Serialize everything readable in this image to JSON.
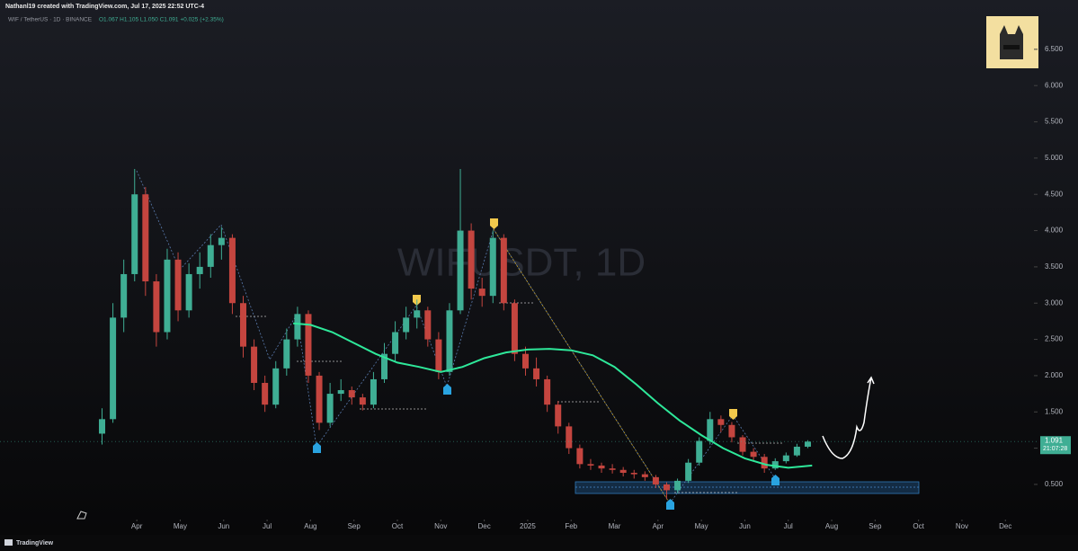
{
  "header": {
    "author_line": "Nathanl19 created with TradingView.com, Jul 17, 2025 22:52 UTC-4",
    "symbol": "WIF / TetherUS · 1D · BINANCE",
    "ohlc": "O1.067 H1.105 L1.050 C1.091 +0.025 (+2.35%)",
    "watermark": "WIFUSDT, 1D",
    "footer": "TradingView"
  },
  "chart_data": {
    "type": "candlestick",
    "xlim": [
      -2.15,
      21.45
    ],
    "ylim": [
      0.09,
      7.18
    ],
    "xticks": [
      {
        "value": 1,
        "label": "Apr"
      },
      {
        "value": 2,
        "label": "May"
      },
      {
        "value": 3,
        "label": "Jun"
      },
      {
        "value": 4,
        "label": "Jul"
      },
      {
        "value": 5,
        "label": "Aug"
      },
      {
        "value": 6,
        "label": "Sep"
      },
      {
        "value": 7,
        "label": "Oct"
      },
      {
        "value": 8,
        "label": "Nov"
      },
      {
        "value": 9,
        "label": "Dec"
      },
      {
        "value": 10,
        "label": "2025"
      },
      {
        "value": 11,
        "label": "Feb"
      },
      {
        "value": 12,
        "label": "Mar"
      },
      {
        "value": 13,
        "label": "Apr"
      },
      {
        "value": 14,
        "label": "May"
      },
      {
        "value": 15,
        "label": "Jun"
      },
      {
        "value": 16,
        "label": "Jul"
      },
      {
        "value": 17,
        "label": "Aug"
      },
      {
        "value": 18,
        "label": "Sep"
      },
      {
        "value": 19,
        "label": "Oct"
      },
      {
        "value": 20,
        "label": "Nov"
      },
      {
        "value": 21,
        "label": "Dec"
      }
    ],
    "yticks": [
      {
        "value": 0.5,
        "label": "0.500"
      },
      {
        "value": 1,
        "label": "1.000"
      },
      {
        "value": 1.5,
        "label": "1.500"
      },
      {
        "value": 2,
        "label": "2.000"
      },
      {
        "value": 2.5,
        "label": "2.500"
      },
      {
        "value": 3,
        "label": "3.000"
      },
      {
        "value": 3.5,
        "label": "3.500"
      },
      {
        "value": 4,
        "label": "4.000"
      },
      {
        "value": 4.5,
        "label": "4.500"
      },
      {
        "value": 5,
        "label": "5.000"
      },
      {
        "value": 5.5,
        "label": "5.500"
      },
      {
        "value": 6,
        "label": "6.000"
      },
      {
        "value": 6.5,
        "label": "6.500"
      }
    ],
    "up_color": "#3fae94",
    "down_color": "#c4453f",
    "x": [
      0.2,
      0.45,
      0.7,
      0.95,
      1.2,
      1.45,
      1.7,
      1.95,
      2.2,
      2.45,
      2.7,
      2.95,
      3.2,
      3.45,
      3.7,
      3.95,
      4.2,
      4.45,
      4.7,
      4.95,
      5.2,
      5.45,
      5.7,
      5.95,
      6.2,
      6.45,
      6.7,
      6.95,
      7.2,
      7.45,
      7.7,
      7.95,
      8.2,
      8.45,
      8.7,
      8.95,
      9.2,
      9.45,
      9.7,
      9.95,
      10.2,
      10.45,
      10.7,
      10.95,
      11.2,
      11.45,
      11.7,
      11.95,
      12.2,
      12.45,
      12.7,
      12.95,
      13.2,
      13.45,
      13.7,
      13.95,
      14.2,
      14.45,
      14.7,
      14.95,
      15.2,
      15.45,
      15.7,
      15.95,
      16.2,
      16.45
    ],
    "open": [
      1.2,
      1.4,
      2.8,
      3.4,
      4.5,
      3.3,
      2.6,
      3.6,
      2.9,
      3.4,
      3.5,
      3.8,
      3.9,
      3.0,
      2.4,
      1.9,
      1.6,
      2.1,
      2.5,
      2.85,
      2.0,
      1.35,
      1.75,
      1.8,
      1.7,
      1.6,
      1.95,
      2.3,
      2.6,
      2.8,
      2.9,
      2.5,
      2.05,
      2.9,
      4.0,
      3.2,
      3.1,
      3.9,
      3.0,
      2.3,
      2.1,
      1.95,
      1.6,
      1.3,
      1.0,
      0.78,
      0.76,
      0.72,
      0.7,
      0.66,
      0.64,
      0.6,
      0.5,
      0.42,
      0.55,
      0.8,
      1.1,
      1.4,
      1.32,
      1.15,
      0.95,
      0.88,
      0.72,
      0.82,
      0.9,
      1.02
    ],
    "high": [
      1.55,
      3.0,
      3.6,
      4.85,
      4.6,
      3.4,
      3.75,
      3.7,
      3.55,
      3.7,
      3.95,
      4.05,
      3.95,
      3.1,
      2.5,
      2.0,
      2.2,
      2.65,
      2.95,
      2.9,
      2.05,
      1.9,
      1.95,
      1.85,
      1.75,
      2.05,
      2.45,
      2.75,
      2.95,
      3.05,
      2.95,
      2.6,
      3.0,
      4.85,
      4.1,
      3.35,
      4.0,
      3.95,
      3.05,
      2.4,
      2.25,
      2.0,
      1.65,
      1.35,
      1.05,
      0.85,
      0.8,
      0.78,
      0.74,
      0.7,
      0.68,
      0.63,
      0.53,
      0.58,
      0.85,
      1.15,
      1.5,
      1.45,
      1.36,
      1.18,
      1.0,
      0.92,
      0.86,
      0.94,
      1.06,
      1.11
    ],
    "low": [
      1.05,
      1.35,
      2.6,
      3.3,
      3.1,
      2.4,
      2.5,
      2.75,
      2.8,
      3.2,
      3.35,
      3.6,
      2.85,
      2.25,
      1.8,
      1.5,
      1.55,
      2.0,
      2.4,
      1.9,
      1.25,
      1.3,
      1.65,
      1.6,
      1.52,
      1.55,
      1.9,
      2.2,
      2.5,
      2.65,
      2.4,
      1.95,
      2.0,
      2.85,
      3.05,
      2.95,
      3.0,
      2.9,
      2.2,
      2.0,
      1.85,
      1.5,
      1.2,
      0.92,
      0.72,
      0.7,
      0.66,
      0.65,
      0.61,
      0.58,
      0.55,
      0.45,
      0.3,
      0.38,
      0.52,
      0.76,
      1.05,
      1.22,
      1.08,
      0.9,
      0.82,
      0.66,
      0.7,
      0.79,
      0.88,
      1.0
    ],
    "close": [
      1.4,
      2.8,
      3.4,
      4.5,
      3.3,
      2.6,
      3.6,
      2.9,
      3.4,
      3.5,
      3.8,
      3.9,
      3.0,
      2.4,
      1.9,
      1.6,
      2.1,
      2.5,
      2.85,
      2.0,
      1.35,
      1.75,
      1.8,
      1.7,
      1.6,
      1.95,
      2.3,
      2.6,
      2.8,
      2.9,
      2.5,
      2.05,
      2.9,
      4.0,
      3.2,
      3.1,
      3.9,
      3.0,
      2.3,
      2.1,
      1.95,
      1.6,
      1.3,
      1.0,
      0.78,
      0.76,
      0.72,
      0.7,
      0.66,
      0.64,
      0.6,
      0.5,
      0.42,
      0.55,
      0.8,
      1.1,
      1.4,
      1.32,
      1.15,
      0.95,
      0.88,
      0.72,
      0.82,
      0.9,
      1.02,
      1.09
    ],
    "moving_average": {
      "color": "#2ee89a",
      "x": [
        4.6,
        5.0,
        5.5,
        6.0,
        6.5,
        7.0,
        7.5,
        8.0,
        8.5,
        9.0,
        9.5,
        10.0,
        10.5,
        11.0,
        11.5,
        12.0,
        12.5,
        13.0,
        13.5,
        14.0,
        14.5,
        15.0,
        15.5,
        16.0,
        16.55
      ],
      "values": [
        2.72,
        2.7,
        2.6,
        2.45,
        2.3,
        2.18,
        2.12,
        2.05,
        2.12,
        2.24,
        2.32,
        2.36,
        2.37,
        2.35,
        2.28,
        2.12,
        1.88,
        1.62,
        1.38,
        1.18,
        1.0,
        0.86,
        0.77,
        0.73,
        0.76
      ]
    },
    "last_price": 1.091,
    "countdown": "21:07:28"
  }
}
